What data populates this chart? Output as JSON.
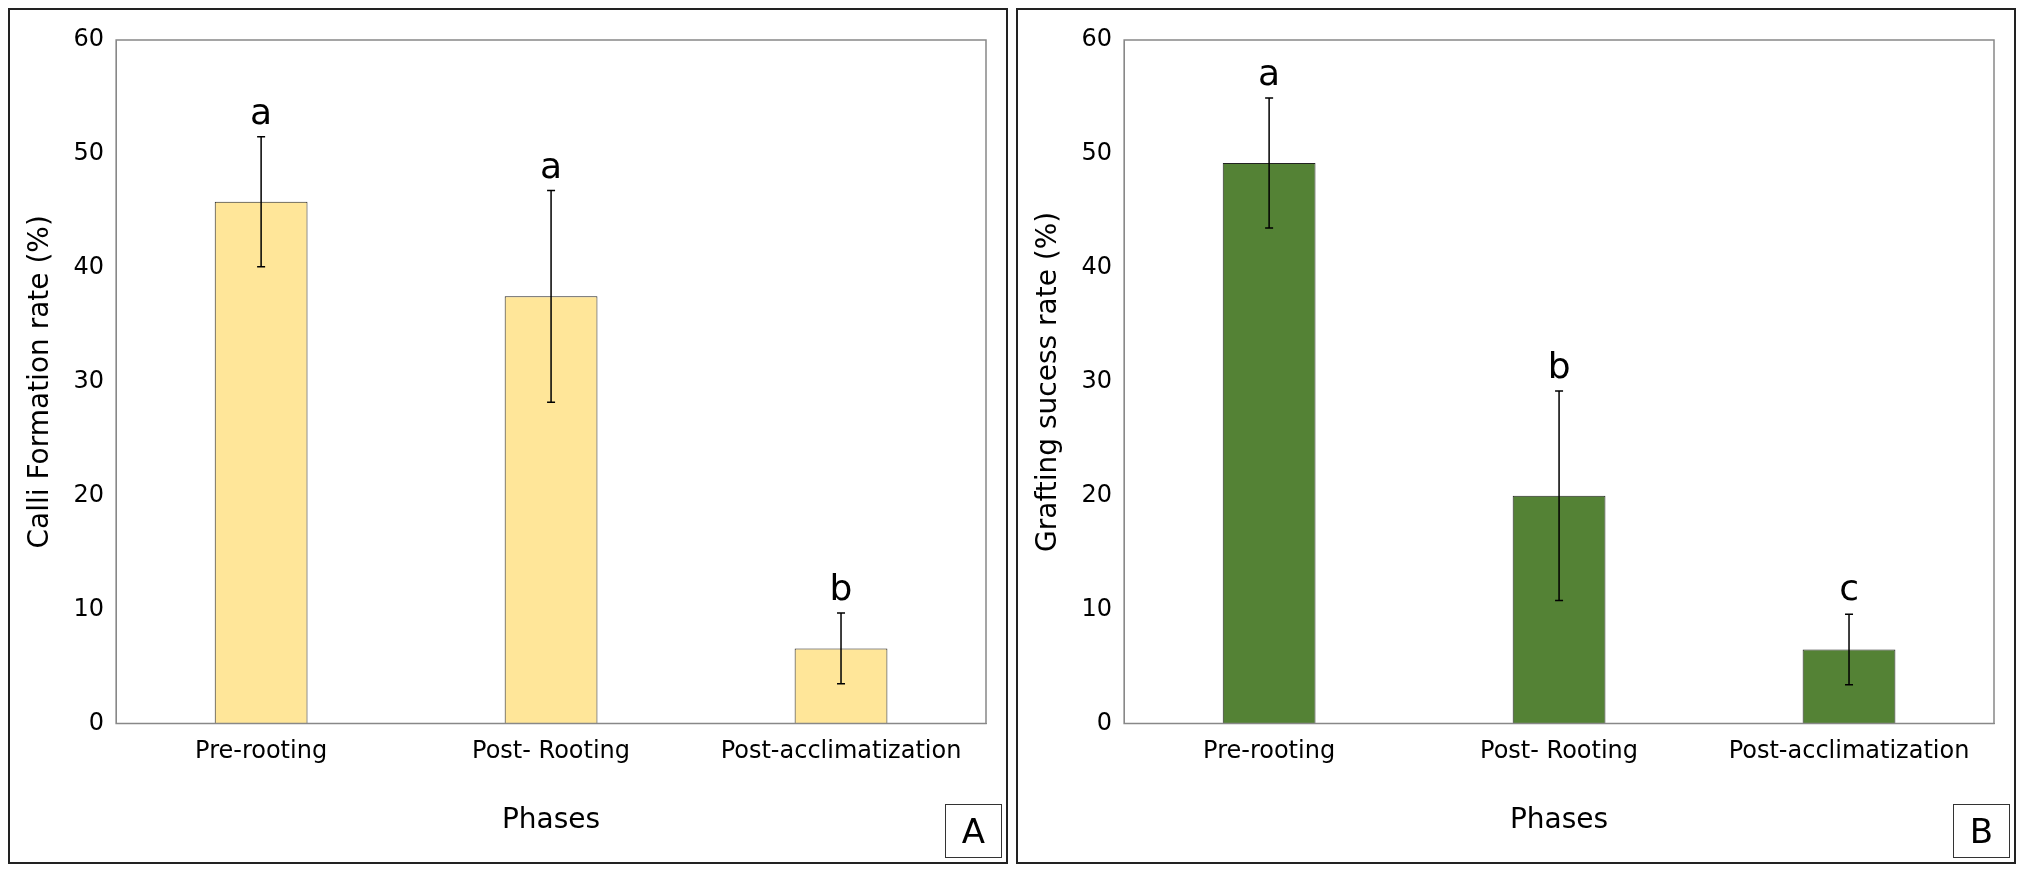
{
  "chart_data": [
    {
      "type": "bar",
      "categories": [
        "Pre-rooting",
        "Post- Rooting",
        "Post-acclimatization"
      ],
      "values": [
        45.8,
        37.5,
        6.6
      ],
      "errors": [
        5.7,
        9.3,
        3.1
      ],
      "color": "#ffe699",
      "xlabel": "Phases",
      "ylabel": "Calli Formation rate (%)",
      "ylim": [
        0,
        60
      ],
      "yticks": [
        0,
        10,
        20,
        30,
        40,
        50,
        60
      ],
      "grid": false,
      "legend": false,
      "annotations": [
        {
          "text": "a",
          "x": "Pre-rooting",
          "y": 51.5
        },
        {
          "text": "a",
          "x": "Post- Rooting",
          "y": 46.8
        },
        {
          "text": "b",
          "x": "Post-acclimatization",
          "y": 9.7
        },
        "A"
      ]
    },
    {
      "type": "bar",
      "categories": [
        "Pre-rooting",
        "Post- Rooting",
        "Post-acclimatization"
      ],
      "values": [
        49.2,
        20.0,
        6.5
      ],
      "errors": [
        5.7,
        9.2,
        3.1
      ],
      "color": "#548235",
      "xlabel": "Phases",
      "ylabel": "Grafting sucess rate (%)",
      "ylim": [
        0,
        60
      ],
      "yticks": [
        0,
        10,
        20,
        30,
        40,
        50,
        60
      ],
      "grid": false,
      "legend": false,
      "annotations": [
        {
          "text": "a",
          "x": "Pre-rooting",
          "y": 54.9
        },
        {
          "text": "b",
          "x": "Post- Rooting",
          "y": 29.2
        },
        {
          "text": "c",
          "x": "Post-acclimatization",
          "y": 9.7
        },
        "B"
      ]
    }
  ]
}
